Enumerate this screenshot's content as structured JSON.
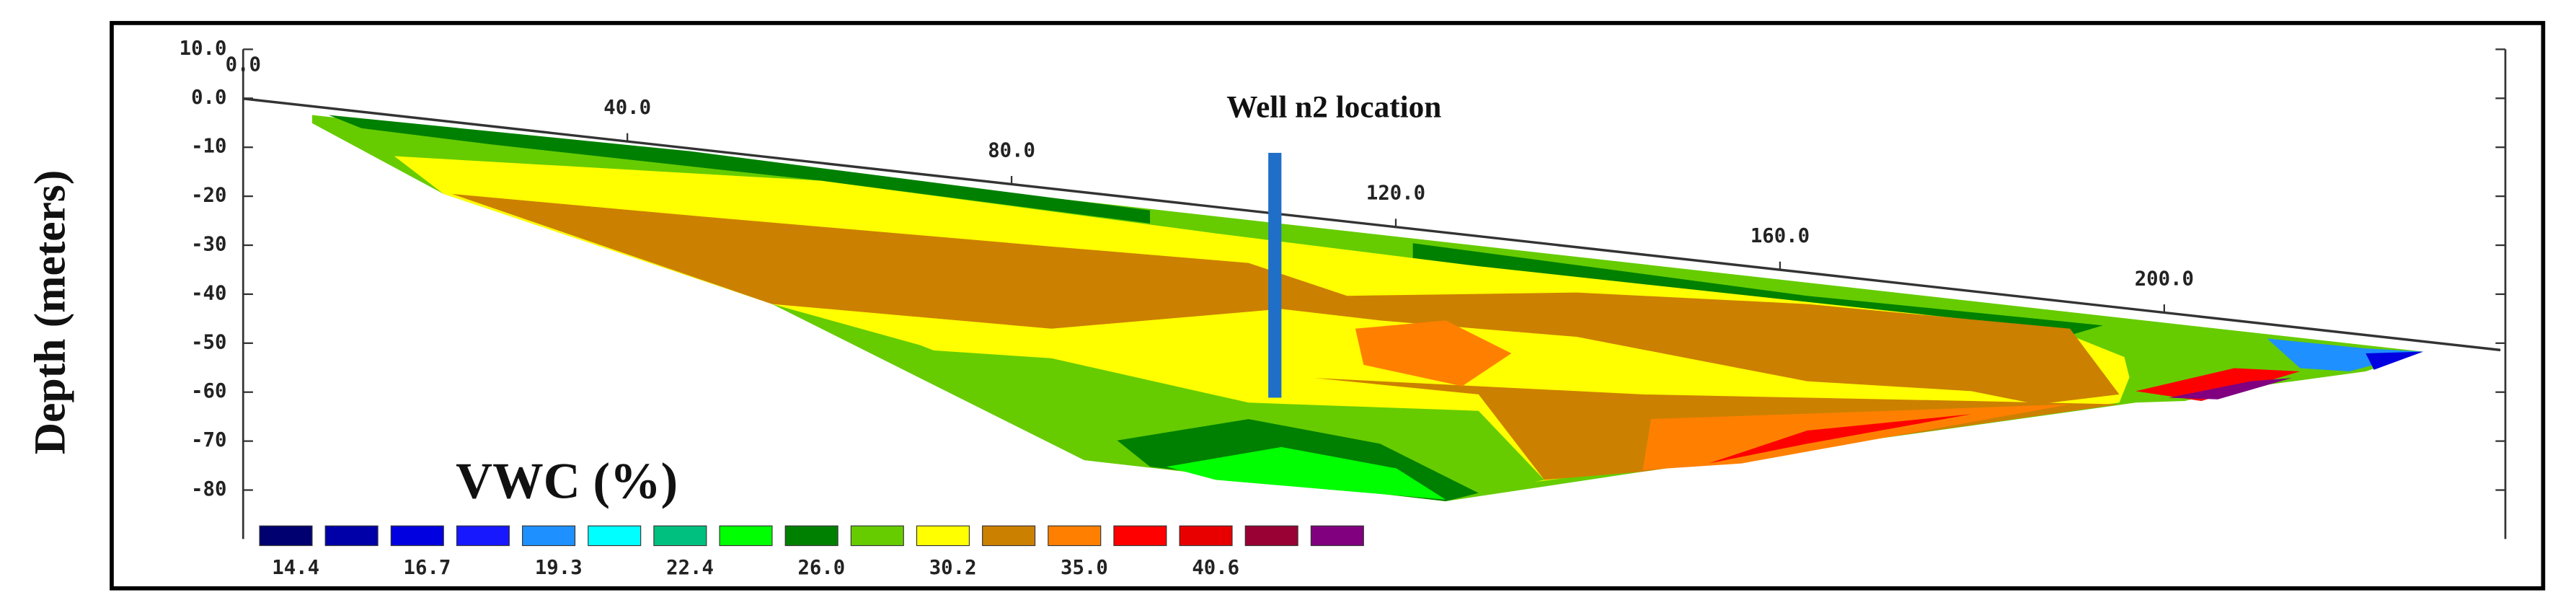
{
  "chart_data": {
    "type": "section",
    "y_label": "Depth (meters)",
    "annotation": "Well n2 location",
    "legend_title": "VWC (%)",
    "ylim": [
      -90,
      10
    ],
    "yticks": [
      {
        "value": 10,
        "label": "10.0"
      },
      {
        "value": 0,
        "label": "0.0"
      },
      -10,
      -20,
      -30,
      -40,
      -50,
      -60,
      -70,
      -80
    ],
    "xlim": [
      0,
      235
    ],
    "xticks": [
      {
        "value": 0,
        "label": "0.0"
      },
      {
        "value": 40,
        "label": "40.0"
      },
      {
        "value": 80,
        "label": "80.0"
      },
      {
        "value": 120,
        "label": "120.0"
      },
      {
        "value": 160,
        "label": "160.0"
      },
      {
        "value": 200,
        "label": "200.0"
      }
    ],
    "legend_colors": [
      "#000070",
      "#0000a8",
      "#0000e0",
      "#1818ff",
      "#1e90ff",
      "#00ffff",
      "#00c080",
      "#00ff00",
      "#008000",
      "#66cc00",
      "#ffff00",
      "#cc8000",
      "#ff8000",
      "#ff0000",
      "#e80000",
      "#990033",
      "#800080"
    ],
    "legend_labels": [
      {
        "value": 14.4,
        "label": "14.4"
      },
      {
        "value": 16.7,
        "label": "16.7"
      },
      {
        "value": 19.3,
        "label": "19.3"
      },
      {
        "value": 22.4,
        "label": "22.4"
      },
      {
        "value": 26,
        "label": "26.0"
      },
      {
        "value": 30.2,
        "label": "30.2"
      },
      {
        "value": 35,
        "label": "35.0"
      },
      {
        "value": 40.6,
        "label": "40.6"
      }
    ]
  }
}
